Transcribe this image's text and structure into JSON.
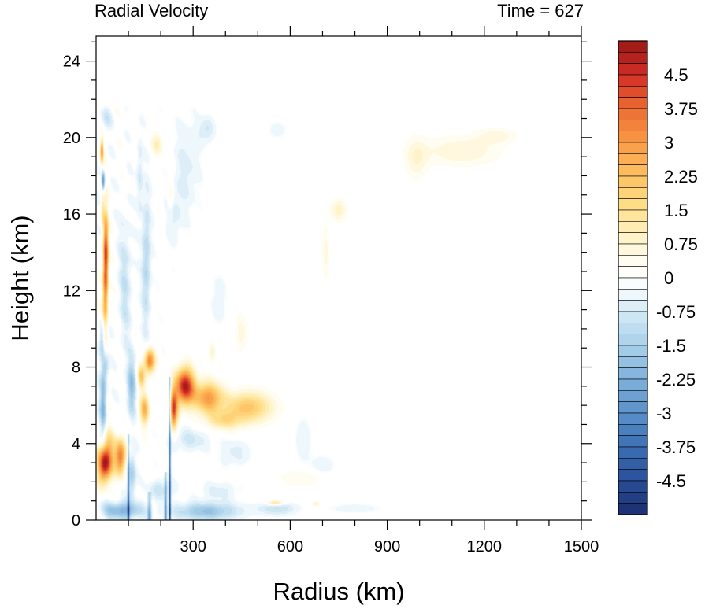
{
  "chart_data": {
    "type": "heatmap",
    "title_left": "Radial Velocity",
    "title_right": "Time = 627",
    "xlabel": "Radius (km)",
    "ylabel": "Height (km)",
    "xlim": [
      0,
      1500
    ],
    "ylim": [
      0,
      25.3
    ],
    "x_ticks": [
      300,
      600,
      900,
      1200,
      1500
    ],
    "y_ticks": [
      0,
      4,
      8,
      12,
      16,
      20,
      24
    ],
    "colorbar": {
      "min": -5.25,
      "max": 5.25,
      "step": 0.25,
      "labels": [
        "4.5",
        "3.75",
        "3",
        "2.25",
        "1.5",
        "0.75",
        "0",
        "-0.75",
        "-1.5",
        "-2.25",
        "-3",
        "-3.75",
        "-4.5"
      ],
      "label_values": [
        4.5,
        3.75,
        3,
        2.25,
        1.5,
        0.75,
        0,
        -0.75,
        -1.5,
        -2.25,
        -3,
        -3.75,
        -4.5
      ],
      "stops": [
        {
          "v": -5.25,
          "c": "#1a2d6e"
        },
        {
          "v": -4.5,
          "c": "#2a4f99"
        },
        {
          "v": -3.75,
          "c": "#3c6fb5"
        },
        {
          "v": -3.0,
          "c": "#5a91c9"
        },
        {
          "v": -2.25,
          "c": "#7fb1dc"
        },
        {
          "v": -1.5,
          "c": "#a8d0e9"
        },
        {
          "v": -0.75,
          "c": "#d4eaf6"
        },
        {
          "v": -0.3,
          "c": "#f3f9fd"
        },
        {
          "v": 0.0,
          "c": "#ffffff"
        },
        {
          "v": 0.3,
          "c": "#fffef6"
        },
        {
          "v": 0.75,
          "c": "#fff6d5"
        },
        {
          "v": 1.5,
          "c": "#fee28f"
        },
        {
          "v": 2.25,
          "c": "#fdc161"
        },
        {
          "v": 3.0,
          "c": "#f99a45"
        },
        {
          "v": 3.75,
          "c": "#ec6b33"
        },
        {
          "v": 4.5,
          "c": "#d42e26"
        },
        {
          "v": 5.25,
          "c": "#981818"
        }
      ]
    },
    "features": [
      {
        "r": 25,
        "z": 2.9,
        "sr": 20,
        "sz": 0.9,
        "v": 4.6
      },
      {
        "r": 75,
        "z": 3.3,
        "sr": 16,
        "sz": 0.9,
        "v": 3.6
      },
      {
        "r": 40,
        "z": 3.6,
        "sr": 20,
        "sz": 1.1,
        "v": 1.8
      },
      {
        "r": 30,
        "z": 14.0,
        "sr": 8,
        "sz": 2.0,
        "v": 4.3
      },
      {
        "r": 28,
        "z": 11.5,
        "sr": 9,
        "sz": 1.8,
        "v": 2.2
      },
      {
        "r": 18,
        "z": 19.3,
        "sr": 5,
        "sz": 0.6,
        "v": 3.0
      },
      {
        "r": 22,
        "z": 17.7,
        "sr": 5,
        "sz": 0.5,
        "v": -3.2
      },
      {
        "r": 20,
        "z": 16.3,
        "sr": 6,
        "sz": 1.0,
        "v": 1.2
      },
      {
        "r": 165,
        "z": 8.3,
        "sr": 16,
        "sz": 0.6,
        "v": 3.5
      },
      {
        "r": 140,
        "z": 7.5,
        "sr": 12,
        "sz": 0.6,
        "v": 2.0
      },
      {
        "r": 275,
        "z": 7.0,
        "sr": 28,
        "sz": 0.9,
        "v": 5.0
      },
      {
        "r": 240,
        "z": 5.8,
        "sr": 12,
        "sz": 1.0,
        "v": 4.2
      },
      {
        "r": 345,
        "z": 6.4,
        "sr": 45,
        "sz": 0.8,
        "v": 2.9
      },
      {
        "r": 470,
        "z": 5.9,
        "sr": 75,
        "sz": 0.8,
        "v": 2.1
      },
      {
        "r": 395,
        "z": 5.2,
        "sr": 55,
        "sz": 0.5,
        "v": 1.3
      },
      {
        "r": 150,
        "z": 5.8,
        "sr": 14,
        "sz": 0.8,
        "v": 2.5
      },
      {
        "r": 360,
        "z": 8.8,
        "sr": 10,
        "sz": 0.6,
        "v": 0.8
      },
      {
        "r": 450,
        "z": 9.8,
        "sr": 20,
        "sz": 1.0,
        "v": 0.6
      },
      {
        "r": 1130,
        "z": 19.3,
        "sr": 120,
        "sz": 0.8,
        "v": 0.75
      },
      {
        "r": 990,
        "z": 18.9,
        "sr": 35,
        "sz": 1.1,
        "v": 0.7
      },
      {
        "r": 1240,
        "z": 20.1,
        "sr": 60,
        "sz": 0.4,
        "v": 0.6
      },
      {
        "r": 750,
        "z": 16.2,
        "sr": 25,
        "sz": 0.6,
        "v": 0.9
      },
      {
        "r": 710,
        "z": 14.0,
        "sr": 12,
        "sz": 1.5,
        "v": 0.6
      },
      {
        "r": 640,
        "z": 2.2,
        "sr": 80,
        "sz": 0.5,
        "v": 0.5
      },
      {
        "r": 555,
        "z": 0.9,
        "sr": 25,
        "sz": 0.12,
        "v": 1.8
      },
      {
        "r": 680,
        "z": 0.85,
        "sr": 12,
        "sz": 0.12,
        "v": 1.0
      },
      {
        "r": 190,
        "z": 19.7,
        "sr": 18,
        "sz": 0.6,
        "v": 1.0
      },
      {
        "r": 230,
        "z": 17.0,
        "sr": 10,
        "sz": 1.0,
        "v": 0.8
      },
      {
        "r": 30,
        "z": 21.0,
        "sr": 20,
        "sz": 0.6,
        "v": -0.7
      },
      {
        "r": 22,
        "z": 6.2,
        "sr": 10,
        "sz": 1.8,
        "v": -2.2
      },
      {
        "r": 18,
        "z": 9.4,
        "sr": 8,
        "sz": 1.0,
        "v": -1.5
      },
      {
        "r": 30,
        "z": 8.0,
        "sr": 10,
        "sz": 0.6,
        "v": -1.2
      },
      {
        "r": 90,
        "z": 12.5,
        "sr": 20,
        "sz": 3.5,
        "v": -0.9
      },
      {
        "r": 155,
        "z": 13.5,
        "sr": 14,
        "sz": 3.5,
        "v": -1.3
      },
      {
        "r": 135,
        "z": 18.0,
        "sr": 10,
        "sz": 2.0,
        "v": -0.8
      },
      {
        "r": 240,
        "z": 16.0,
        "sr": 25,
        "sz": 1.5,
        "v": -0.6
      },
      {
        "r": 280,
        "z": 18.5,
        "sr": 40,
        "sz": 2.5,
        "v": -0.6
      },
      {
        "r": 340,
        "z": 20.4,
        "sr": 25,
        "sz": 0.7,
        "v": -0.8
      },
      {
        "r": 560,
        "z": 20.4,
        "sr": 30,
        "sz": 0.5,
        "v": -0.4
      },
      {
        "r": 380,
        "z": 11.5,
        "sr": 20,
        "sz": 1.5,
        "v": -0.5
      },
      {
        "r": 110,
        "z": 7.0,
        "sr": 14,
        "sz": 1.5,
        "v": -1.8
      },
      {
        "r": 290,
        "z": 4.2,
        "sr": 60,
        "sz": 0.6,
        "v": -0.8
      },
      {
        "r": 430,
        "z": 3.5,
        "sr": 50,
        "sz": 0.7,
        "v": -0.6
      },
      {
        "r": 640,
        "z": 4.2,
        "sr": 25,
        "sz": 1.2,
        "v": -0.5
      },
      {
        "r": 700,
        "z": 2.8,
        "sr": 40,
        "sz": 0.6,
        "v": -0.5
      },
      {
        "r": 110,
        "z": 2.3,
        "sr": 12,
        "sz": 1.2,
        "v": -1.6
      },
      {
        "r": 80,
        "z": 0.5,
        "sr": 60,
        "sz": 0.45,
        "v": -2.2
      },
      {
        "r": 340,
        "z": 0.45,
        "sr": 100,
        "sz": 0.45,
        "v": -1.8
      },
      {
        "r": 560,
        "z": 0.6,
        "sr": 60,
        "sz": 0.35,
        "v": -1.0
      },
      {
        "r": 800,
        "z": 0.6,
        "sr": 90,
        "sz": 0.3,
        "v": -0.4
      },
      {
        "r": 200,
        "z": 1.6,
        "sr": 40,
        "sz": 0.5,
        "v": -0.9
      },
      {
        "r": 380,
        "z": 1.5,
        "sr": 60,
        "sz": 0.5,
        "v": -0.6
      }
    ],
    "streaks": [
      {
        "r": 228,
        "z0": 0.0,
        "z1": 7.5,
        "w": 3,
        "v": -4.8
      },
      {
        "r": 100,
        "z0": 0.0,
        "z1": 4.5,
        "w": 3,
        "v": -3.8
      },
      {
        "r": 165,
        "z0": 0.0,
        "z1": 1.5,
        "w": 6,
        "v": -2.5
      },
      {
        "r": 215,
        "z0": 0.0,
        "z1": 2.5,
        "w": 4,
        "v": -3.0
      }
    ]
  }
}
